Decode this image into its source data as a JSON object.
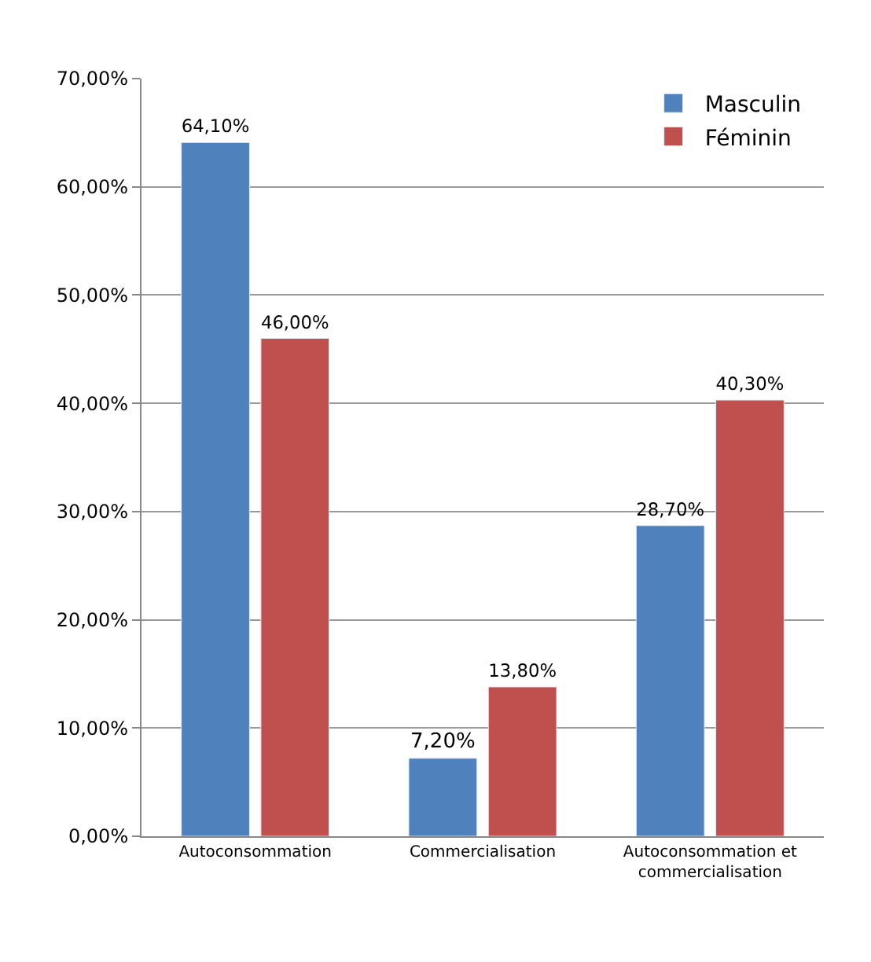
{
  "chart_data": {
    "type": "bar",
    "categories": [
      "Autoconsommation",
      "Commercialisation",
      "Autoconsommation et\ncommercialisation"
    ],
    "series": [
      {
        "name": "Masculin",
        "color": "#4f81bd",
        "values": [
          64.1,
          7.2,
          28.7
        ],
        "value_labels": [
          "64,10%",
          "7,20%",
          "28,70%"
        ]
      },
      {
        "name": "Féminin",
        "color": "#c0504d",
        "values": [
          46.0,
          13.8,
          40.3
        ],
        "value_labels": [
          "46,00%",
          "13,80%",
          "40,30%"
        ]
      }
    ],
    "ylim": [
      0,
      70
    ],
    "yticks": [
      {
        "value": 0,
        "label": "0,00%"
      },
      {
        "value": 10,
        "label": "10,00%"
      },
      {
        "value": 20,
        "label": "20,00%"
      },
      {
        "value": 30,
        "label": "30,00%"
      },
      {
        "value": 40,
        "label": "40,00%"
      },
      {
        "value": 50,
        "label": "50,00%"
      },
      {
        "value": 60,
        "label": "60,00%"
      },
      {
        "value": 70,
        "label": "70,00%"
      }
    ],
    "grid": "y",
    "legend": "top right"
  }
}
